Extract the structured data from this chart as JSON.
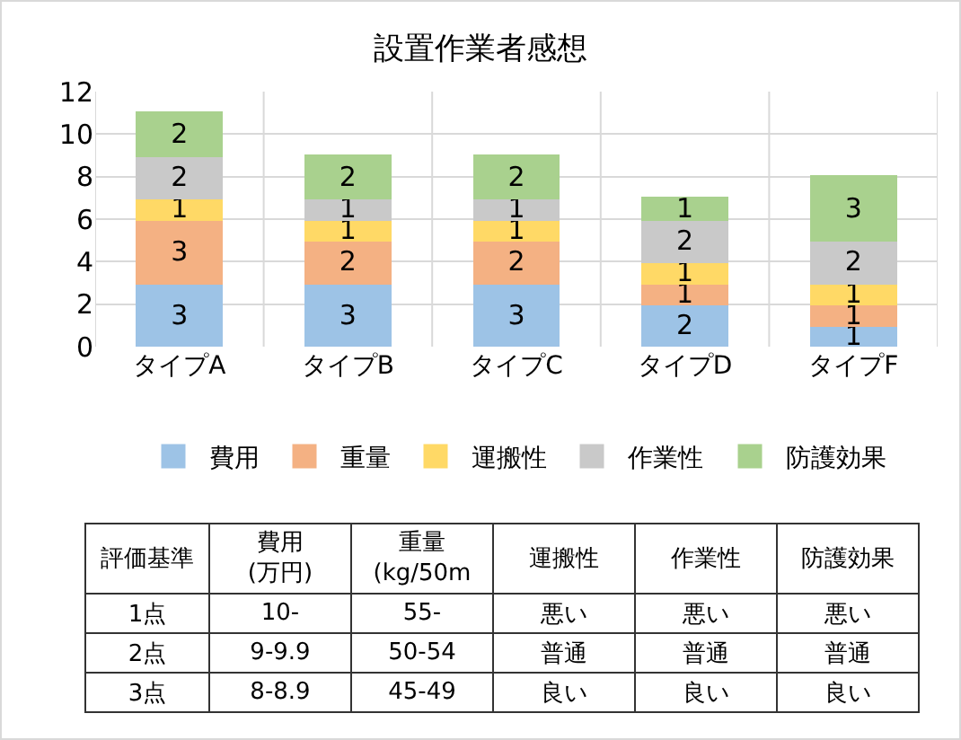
{
  "chart_data": [
    {
      "type": "bar",
      "title": "設置作業者感想",
      "stacked": true,
      "data_labels": true,
      "grid": true,
      "legend": "bottom",
      "categories": [
        "タイプA",
        "タイプB",
        "タイプC",
        "タイプD",
        "タイプF"
      ],
      "ylim": [
        0,
        12
      ],
      "yticks": [
        0,
        2,
        4,
        6,
        8,
        10,
        12
      ],
      "series": [
        {
          "name": "費用",
          "color": "#9dc3e6",
          "values": [
            3,
            3,
            3,
            2,
            1
          ]
        },
        {
          "name": "重量",
          "color": "#f4b183",
          "values": [
            3,
            2,
            2,
            1,
            1
          ]
        },
        {
          "name": "運搬性",
          "color": "#ffd966",
          "values": [
            1,
            1,
            1,
            1,
            1
          ]
        },
        {
          "name": "作業性",
          "color": "#c9c9c9",
          "values": [
            2,
            1,
            1,
            2,
            2
          ]
        },
        {
          "name": "防護効果",
          "color": "#a9d18e",
          "values": [
            2,
            2,
            2,
            1,
            3
          ]
        }
      ]
    },
    {
      "type": "other",
      "categories": [
        "評価基準",
        "費用\n(万円)",
        "重量\n(kg/50m",
        "運搬性",
        "作業性",
        "防護効果"
      ],
      "cell_labels": [
        [
          "1点",
          "10-",
          "55-",
          "悪い",
          "悪い",
          "悪い"
        ],
        [
          "2点",
          "9-9.9",
          "50-54",
          "普通",
          "普通",
          "普通"
        ],
        [
          "3点",
          "8-8.9",
          "45-49",
          "良い",
          "良い",
          "良い"
        ]
      ]
    }
  ]
}
